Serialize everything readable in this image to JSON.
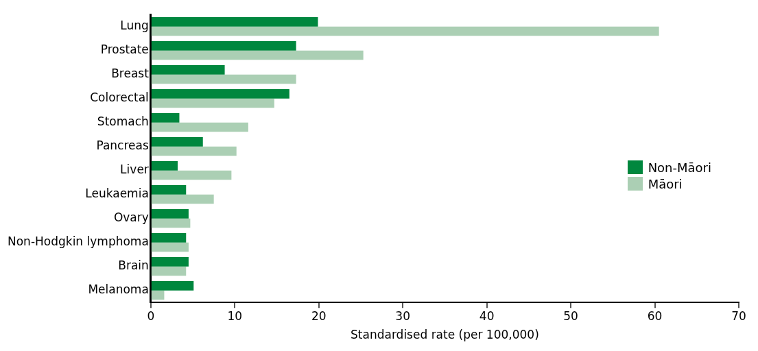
{
  "chart_data": {
    "type": "bar",
    "orientation": "horizontal",
    "xlabel": "Standardised rate (per 100,000)",
    "categories": [
      "Lung",
      "Prostate",
      "Breast",
      "Colorectal",
      "Stomach",
      "Pancreas",
      "Liver",
      "Leukaemia",
      "Ovary",
      "Non-Hodgkin lymphoma",
      "Brain",
      "Melanoma"
    ],
    "series": [
      {
        "name": "Non-Māori",
        "color": "#00873e",
        "values": [
          19.9,
          17.3,
          8.8,
          16.5,
          3.4,
          6.2,
          3.2,
          4.2,
          4.5,
          4.2,
          4.5,
          5.1
        ]
      },
      {
        "name": "Māori",
        "color": "#abcfb4",
        "values": [
          60.5,
          25.3,
          17.3,
          14.7,
          11.6,
          10.2,
          9.6,
          7.5,
          4.7,
          4.5,
          4.2,
          1.6
        ]
      }
    ],
    "xlim": [
      0,
      70
    ],
    "xticks": [
      0,
      10,
      20,
      30,
      40,
      50,
      60,
      70
    ],
    "grid": false,
    "legend": "right"
  }
}
